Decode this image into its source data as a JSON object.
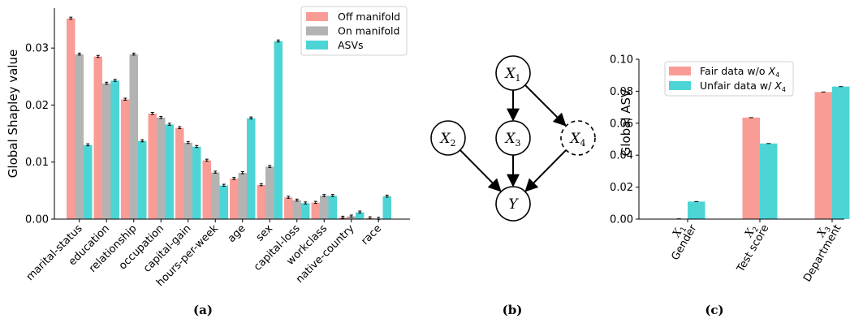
{
  "colors": {
    "off": "#F99C96",
    "on": "#B3B3B3",
    "asv": "#4DD5D5",
    "axis": "#000000"
  },
  "captions": {
    "a": "(a)",
    "b": "(b)",
    "c": "(c)"
  },
  "chart_data": [
    {
      "type": "bar",
      "ylabel": "Global Shapley value",
      "ylim": [
        0,
        0.037
      ],
      "yticks": [
        "0.00",
        "0.01",
        "0.02",
        "0.03"
      ],
      "categories": [
        "marital-status",
        "education",
        "relationship",
        "occupation",
        "capital-gain",
        "hours-per-week",
        "age",
        "sex",
        "capital-loss",
        "workclass",
        "native-country",
        "race"
      ],
      "legend": "top-right",
      "series": [
        {
          "name": "Off manifold",
          "color": "#F99C96",
          "values": [
            0.0352,
            0.0285,
            0.021,
            0.0185,
            0.016,
            0.0103,
            0.0071,
            0.006,
            0.0038,
            0.0029,
            0.0003,
            0.0002
          ]
        },
        {
          "name": "On manifold",
          "color": "#B3B3B3",
          "values": [
            0.0289,
            0.0238,
            0.0289,
            0.0178,
            0.0134,
            0.0082,
            0.0081,
            0.0092,
            0.0033,
            0.0041,
            0.0005,
            0.0001
          ]
        },
        {
          "name": "ASVs",
          "color": "#4DD5D5",
          "values": [
            0.013,
            0.0243,
            0.0137,
            0.0166,
            0.0127,
            0.0059,
            0.0177,
            0.0312,
            0.0028,
            0.0041,
            0.0012,
            0.004
          ]
        }
      ]
    },
    {
      "type": "diagram",
      "nodes": [
        {
          "id": "X1",
          "label": "X",
          "sub": "1",
          "dashed": false
        },
        {
          "id": "X2",
          "label": "X",
          "sub": "2",
          "dashed": false
        },
        {
          "id": "X3",
          "label": "X",
          "sub": "3",
          "dashed": false
        },
        {
          "id": "X4",
          "label": "X",
          "sub": "4",
          "dashed": true
        },
        {
          "id": "Y",
          "label": "Y",
          "sub": "",
          "dashed": false
        }
      ],
      "edges": [
        [
          "X1",
          "X3"
        ],
        [
          "X1",
          "X4"
        ],
        [
          "X2",
          "Y"
        ],
        [
          "X3",
          "Y"
        ],
        [
          "X4",
          "Y"
        ]
      ]
    },
    {
      "type": "bar",
      "ylabel": "Global ASV",
      "ylim": [
        0,
        0.1
      ],
      "yticks": [
        "0.00",
        "0.02",
        "0.04",
        "0.06",
        "0.08",
        "0.10"
      ],
      "categories": [
        {
          "sym": "X",
          "sub": "1",
          "name": "Gender"
        },
        {
          "sym": "X",
          "sub": "2",
          "name": "Test score"
        },
        {
          "sym": "X",
          "sub": "3",
          "name": "Department"
        }
      ],
      "legend": "top-left",
      "series": [
        {
          "name": "Fair data w/o ",
          "sym": "X",
          "sub": "4",
          "color": "#F99C96",
          "values": [
            0.0002,
            0.0635,
            0.0795
          ]
        },
        {
          "name": "Unfair data w/ ",
          "sym": "X",
          "sub": "4",
          "color": "#4DD5D5",
          "values": [
            0.011,
            0.0473,
            0.0829
          ]
        }
      ]
    }
  ]
}
